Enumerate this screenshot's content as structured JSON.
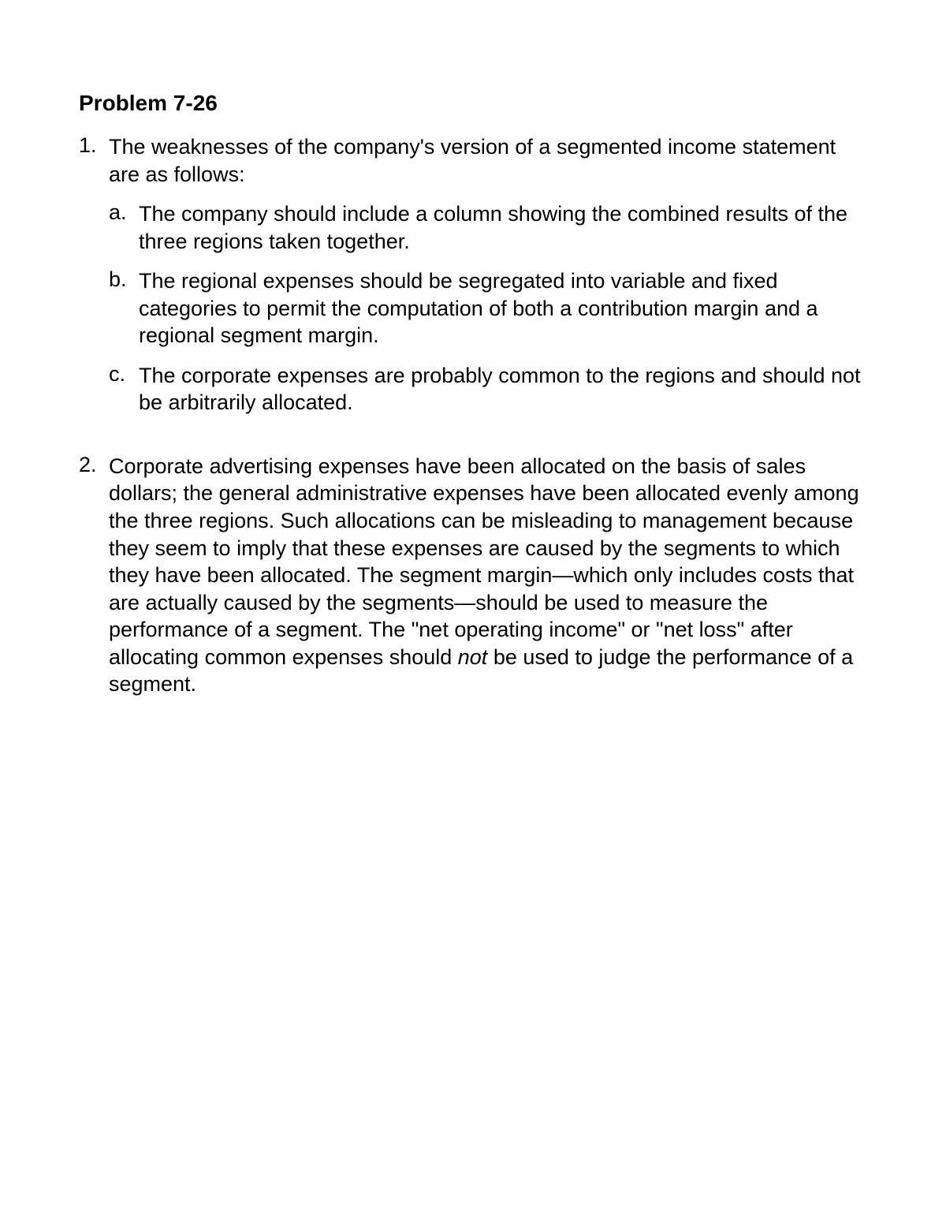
{
  "title": "Problem 7-26",
  "items": [
    {
      "number": "1.",
      "text": "The weaknesses of the company's version of a segmented income statement are as follows:",
      "subitems": [
        {
          "letter": "a.",
          "text": "The company should include a column showing the combined results of the three regions taken together."
        },
        {
          "letter": "b.",
          "text": "The regional expenses should be segregated into variable and fixed categories to permit the computation of both a contribution margin and a regional segment margin."
        },
        {
          "letter": "c.",
          "text": "The corporate expenses are probably common to the regions and should not be arbitrarily allocated."
        }
      ]
    },
    {
      "number": "2.",
      "text_part1": "Corporate advertising expenses have been allocated on the basis of sales dollars; the general administrative expenses have been allocated evenly among the three regions. Such allocations can be misleading to management because they seem to imply that these expenses are caused by the segments to which they have been allocated. The segment margin—which only includes costs that are actually caused by the segments—should be used to measure the performance of a segment. The \"net operating income\" or \"net loss\" after allocating common expenses should ",
      "text_italic": "not",
      "text_part2": " be used to judge the performance of a segment."
    }
  ]
}
